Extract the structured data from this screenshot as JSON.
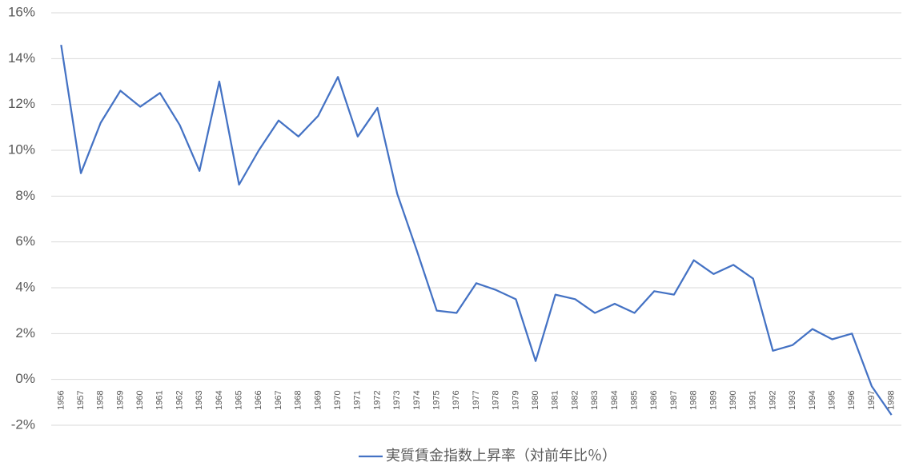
{
  "chart_data": {
    "type": "line",
    "categories": [
      "1956",
      "1957",
      "1958",
      "1959",
      "1960",
      "1961",
      "1962",
      "1963",
      "1964",
      "1965",
      "1966",
      "1967",
      "1968",
      "1969",
      "1970",
      "1971",
      "1972",
      "1973",
      "1974",
      "1975",
      "1976",
      "1977",
      "1978",
      "1979",
      "1980",
      "1981",
      "1982",
      "1983",
      "1984",
      "1985",
      "1986",
      "1987",
      "1988",
      "1989",
      "1990",
      "1991",
      "1992",
      "1993",
      "1994",
      "1995",
      "1996",
      "1997",
      "1998"
    ],
    "series": [
      {
        "name": "実質賃金指数上昇率（対前年比％）",
        "color": "#4472c4",
        "values": [
          14.6,
          9.0,
          11.2,
          12.6,
          11.9,
          12.5,
          11.1,
          9.1,
          13.0,
          8.5,
          10.0,
          11.3,
          10.6,
          11.5,
          13.2,
          10.6,
          11.85,
          8.1,
          5.6,
          3.0,
          2.9,
          4.2,
          3.9,
          3.5,
          0.8,
          3.7,
          3.5,
          2.9,
          3.3,
          2.9,
          3.85,
          3.7,
          5.2,
          4.6,
          5.0,
          4.4,
          1.25,
          1.5,
          2.2,
          1.75,
          2.0,
          -0.3,
          -1.55
        ]
      }
    ],
    "ylim": [
      -2,
      16
    ],
    "yticks": [
      {
        "value": -2,
        "label": "-2%"
      },
      {
        "value": 0,
        "label": "0%"
      },
      {
        "value": 2,
        "label": "2%"
      },
      {
        "value": 4,
        "label": "4%"
      },
      {
        "value": 6,
        "label": "6%"
      },
      {
        "value": 8,
        "label": "8%"
      },
      {
        "value": 10,
        "label": "10%"
      },
      {
        "value": 12,
        "label": "12%"
      },
      {
        "value": 14,
        "label": "14%"
      },
      {
        "value": 16,
        "label": "16%"
      }
    ],
    "grid": true,
    "legend": "bottom"
  }
}
